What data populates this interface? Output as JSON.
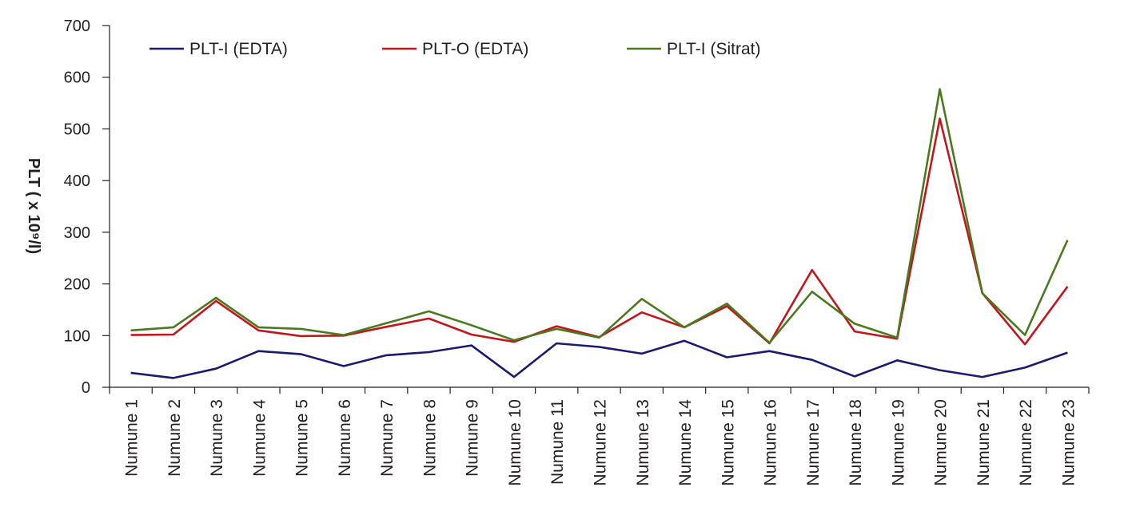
{
  "chart_data": {
    "type": "line",
    "categories": [
      "Numune 1",
      "Numune 2",
      "Numune 3",
      "Numune 4",
      "Numune 5",
      "Numune 6",
      "Numune 7",
      "Numune 8",
      "Numune 9",
      "Numune 10",
      "Numune 11",
      "Numune 12",
      "Numune 13",
      "Numune 14",
      "Numune 15",
      "Numune 16",
      "Numune 17",
      "Numune 18",
      "Numune 19",
      "Numune 20",
      "Numune 21",
      "Numune 22",
      "Numune 23"
    ],
    "series": [
      {
        "name": "PLT-I (EDTA)",
        "color": "#1a1a6e",
        "values": [
          28,
          18,
          36,
          70,
          64,
          41,
          62,
          68,
          81,
          20,
          85,
          78,
          65,
          90,
          58,
          70,
          53,
          21,
          52,
          33,
          20,
          38,
          67
        ]
      },
      {
        "name": "PLT-O (EDTA)",
        "color": "#c0171d",
        "values": [
          101,
          102,
          167,
          110,
          99,
          100,
          117,
          133,
          102,
          88,
          118,
          97,
          145,
          116,
          157,
          85,
          227,
          108,
          94,
          520,
          182,
          83,
          195
        ]
      },
      {
        "name": "PLT-I (Sitrat)",
        "color": "#4a7a1f",
        "values": [
          110,
          116,
          173,
          116,
          113,
          101,
          124,
          147,
          120,
          91,
          113,
          96,
          171,
          116,
          162,
          86,
          185,
          123,
          96,
          577,
          182,
          101,
          285
        ]
      }
    ],
    "title": "",
    "xlabel": "",
    "ylabel": "PLT ( x 10⁹/l)",
    "ylim": [
      0,
      700
    ],
    "yticks": [
      0,
      100,
      200,
      300,
      400,
      500,
      600,
      700
    ],
    "grid": false,
    "legend": "top"
  }
}
